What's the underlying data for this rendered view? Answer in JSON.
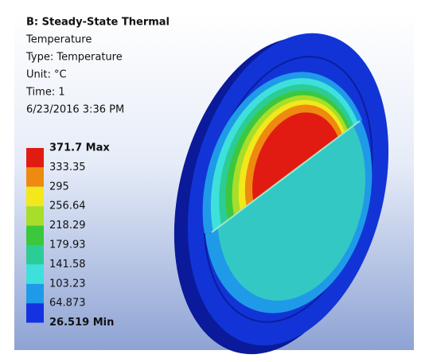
{
  "header": {
    "title": "B: Steady-State Thermal",
    "lines": [
      "Temperature",
      "Type: Temperature",
      "Unit: °C",
      "Time: 1",
      "6/23/2016 3:36 PM"
    ]
  },
  "legend": {
    "labels": [
      "371.7 Max",
      "333.35",
      "295",
      "256.64",
      "218.29",
      "179.93",
      "141.58",
      "103.23",
      "64.873",
      "26.519 Min"
    ],
    "colors": [
      "#e21b12",
      "#ee8a10",
      "#f2e81a",
      "#a8de2a",
      "#3cc83c",
      "#2ccc96",
      "#3ee0dc",
      "#1f9ae8",
      "#1432e0"
    ]
  }
}
